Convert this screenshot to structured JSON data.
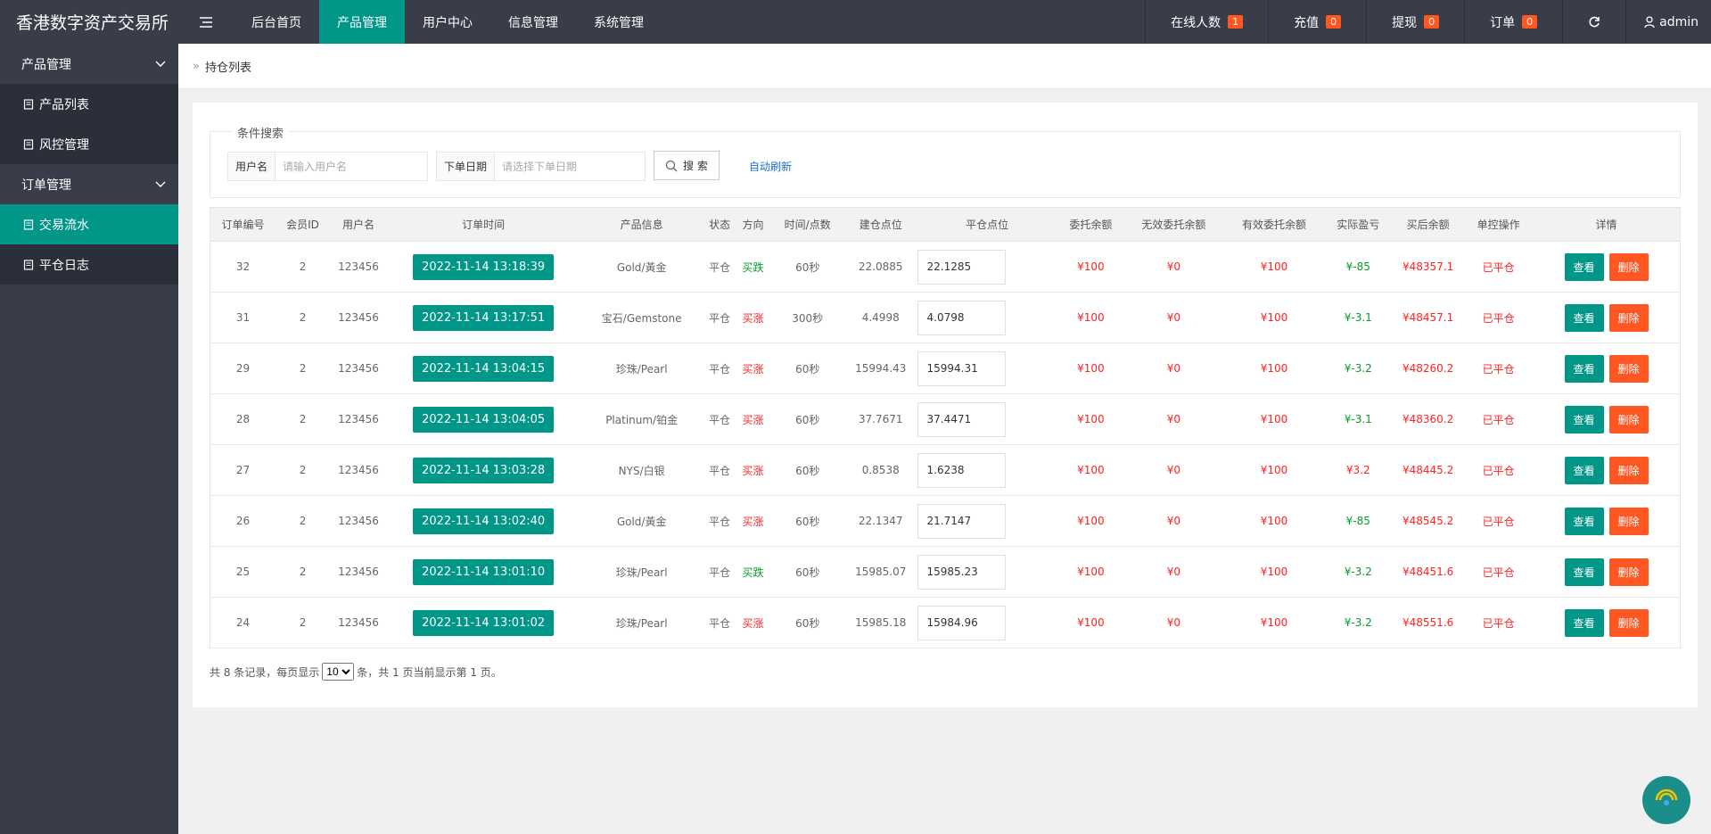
{
  "header": {
    "brand": "香港数字资产交易所",
    "nav": [
      "后台首页",
      "产品管理",
      "用户中心",
      "信息管理",
      "系统管理"
    ],
    "active_nav": 1,
    "stats": [
      {
        "label": "在线人数",
        "count": 1
      },
      {
        "label": "充值",
        "count": 0
      },
      {
        "label": "提现",
        "count": 0
      },
      {
        "label": "订单",
        "count": 0
      }
    ],
    "user": "admin"
  },
  "sidebar": {
    "groups": [
      {
        "label": "产品管理",
        "items": [
          "产品列表",
          "风控管理"
        ]
      },
      {
        "label": "订单管理",
        "items": [
          "交易流水",
          "平仓日志"
        ]
      }
    ],
    "active": [
      1,
      0
    ]
  },
  "breadcrumb": "持仓列表",
  "search": {
    "legend": "条件搜索",
    "fields": [
      {
        "label": "用户名",
        "placeholder": "请输入用户名"
      },
      {
        "label": "下单日期",
        "placeholder": "请选择下单日期"
      }
    ],
    "button": "搜 索",
    "link": "自动刷新"
  },
  "table": {
    "columns": [
      "订单编号",
      "会员ID",
      "用户名",
      "订单时间",
      "产品信息",
      "状态",
      "方向",
      "时间/点数",
      "建仓点位",
      "平仓点位",
      "委托余额",
      "无效委托余额",
      "有效委托余额",
      "实际盈亏",
      "买后余额",
      "单控操作",
      "详情"
    ],
    "rows": [
      {
        "cells": [
          "32",
          "2",
          "123456",
          "2022-11-14 13:18:39",
          "Gold/黃金",
          "平仓",
          "买跌",
          "60秒",
          "22.0885",
          "22.1285",
          "¥100",
          "¥0",
          "¥100",
          "¥-85",
          "¥48357.1",
          "已平仓"
        ],
        "direction_color": "#0b9a2c",
        "profit_color": "#0b9a2c"
      },
      {
        "cells": [
          "31",
          "2",
          "123456",
          "2022-11-14 13:17:51",
          "宝石/Gemstone",
          "平仓",
          "买涨",
          "300秒",
          "4.4998",
          "4.0798",
          "¥100",
          "¥0",
          "¥100",
          "¥-3.1",
          "¥48457.1",
          "已平仓"
        ],
        "direction_color": "#ff2222",
        "profit_color": "#0b9a2c"
      },
      {
        "cells": [
          "29",
          "2",
          "123456",
          "2022-11-14 13:04:15",
          "珍珠/Pearl",
          "平仓",
          "买涨",
          "60秒",
          "15994.43",
          "15994.31",
          "¥100",
          "¥0",
          "¥100",
          "¥-3.2",
          "¥48260.2",
          "已平仓"
        ],
        "direction_color": "#ff2222",
        "profit_color": "#0b9a2c"
      },
      {
        "cells": [
          "28",
          "2",
          "123456",
          "2022-11-14 13:04:05",
          "Platinum/铂金",
          "平仓",
          "买涨",
          "60秒",
          "37.7671",
          "37.4471",
          "¥100",
          "¥0",
          "¥100",
          "¥-3.1",
          "¥48360.2",
          "已平仓"
        ],
        "direction_color": "#ff2222",
        "profit_color": "#0b9a2c"
      },
      {
        "cells": [
          "27",
          "2",
          "123456",
          "2022-11-14 13:03:28",
          "NYS/白银",
          "平仓",
          "买涨",
          "60秒",
          "0.8538",
          "1.6238",
          "¥100",
          "¥0",
          "¥100",
          "¥3.2",
          "¥48445.2",
          "已平仓"
        ],
        "direction_color": "#ff2222",
        "profit_color": "#ff2222"
      },
      {
        "cells": [
          "26",
          "2",
          "123456",
          "2022-11-14 13:02:40",
          "Gold/黃金",
          "平仓",
          "买涨",
          "60秒",
          "22.1347",
          "21.7147",
          "¥100",
          "¥0",
          "¥100",
          "¥-85",
          "¥48545.2",
          "已平仓"
        ],
        "direction_color": "#ff2222",
        "profit_color": "#0b9a2c"
      },
      {
        "cells": [
          "25",
          "2",
          "123456",
          "2022-11-14 13:01:10",
          "珍珠/Pearl",
          "平仓",
          "买跌",
          "60秒",
          "15985.07",
          "15985.23",
          "¥100",
          "¥0",
          "¥100",
          "¥-3.2",
          "¥48451.6",
          "已平仓"
        ],
        "direction_color": "#0b9a2c",
        "profit_color": "#0b9a2c"
      },
      {
        "cells": [
          "24",
          "2",
          "123456",
          "2022-11-14 13:01:02",
          "珍珠/Pearl",
          "平仓",
          "买涨",
          "60秒",
          "15985.18",
          "15984.96",
          "¥100",
          "¥0",
          "¥100",
          "¥-3.2",
          "¥48551.6",
          "已平仓"
        ],
        "direction_color": "#ff2222",
        "profit_color": "#0b9a2c"
      }
    ]
  },
  "actions": [
    "查看",
    "删除"
  ],
  "pagination": {
    "prefix": "共 8 条记录，每页显示",
    "page_size": 10,
    "suffix": "条，共 1 页当前显示第 1 页。"
  }
}
